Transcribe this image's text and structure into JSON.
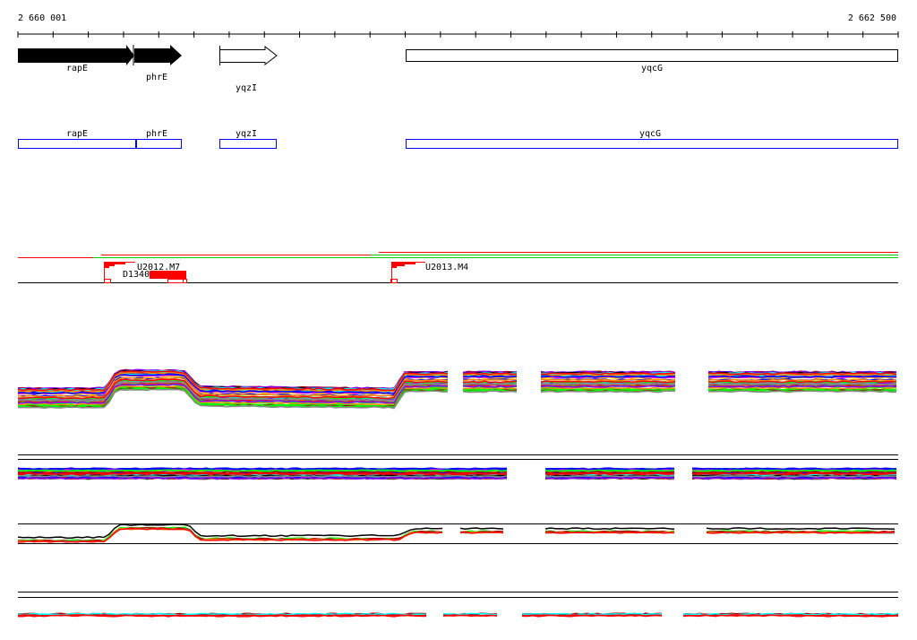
{
  "ruler": {
    "start_label": "2 660 001",
    "end_label": "2 662 500",
    "start": 2660001,
    "end": 2662500,
    "tick_step": 100
  },
  "genes": [
    {
      "name": "rapE",
      "start": 2660001,
      "end": 2660333,
      "strand": "+",
      "filled": true
    },
    {
      "name": "phrE",
      "start": 2660333,
      "end": 2660468,
      "strand": "+",
      "filled": true
    },
    {
      "name": "yqzI",
      "start": 2660576,
      "end": 2660738,
      "strand": "+",
      "filled": false
    },
    {
      "name": "yqcG",
      "start": 2661110,
      "end": 2662500,
      "strand": "none",
      "filled": false
    }
  ],
  "annotation_boxes": [
    "rapE",
    "phrE",
    "yqzI",
    "yqcG"
  ],
  "features": {
    "u2012": "U2012.M7",
    "d1340": "D1340",
    "u2013": "U2013.M4"
  },
  "colors": {
    "gene": "#000000",
    "box": "#0000ff",
    "feature": "#ff0000",
    "green": "#00cc00"
  }
}
